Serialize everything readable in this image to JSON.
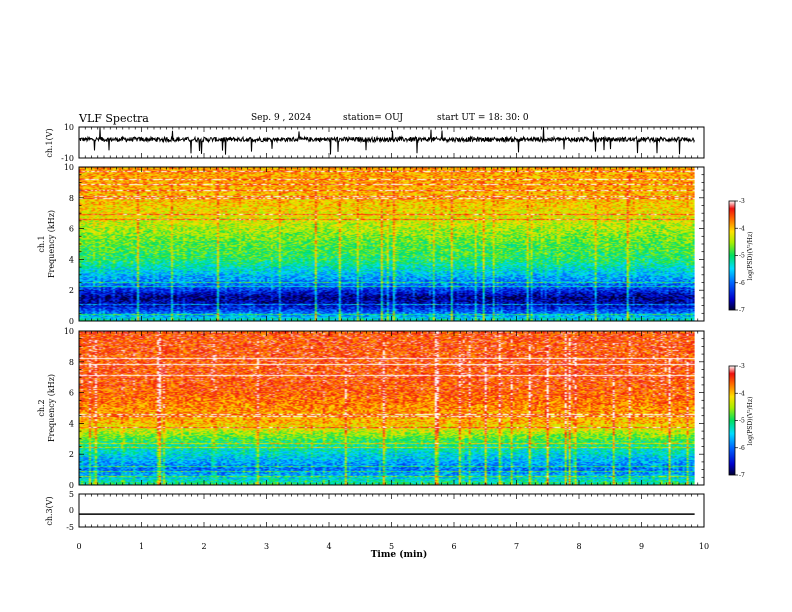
{
  "header": {
    "title": "VLF Spectra",
    "date": "Sep. 9 , 2024",
    "station": "station= OUJ",
    "start_time": "start UT = 18: 30: 0"
  },
  "chart_data": [
    {
      "type": "line",
      "panel": "ch1-waveform",
      "ylabel": "ch.1(V)",
      "ylim": [
        -10,
        10
      ],
      "yticks": [
        "10",
        "-10"
      ],
      "xlim": [
        0,
        10
      ],
      "series": [
        {
          "level": 2,
          "noise_amplitude": 3,
          "spike_amplitude": 10,
          "duration_min": 9.85
        }
      ]
    },
    {
      "type": "heatmap",
      "panel": "ch1-spectrogram",
      "ylabel_line1": "ch.1",
      "ylabel_line2": "Frequency (kHz)",
      "ylim": [
        0,
        10
      ],
      "yticks": [
        "0",
        "2",
        "4",
        "6",
        "8",
        "10"
      ],
      "xlim": [
        0,
        10
      ],
      "duration_min": 9.85,
      "log_psd_profile_by_freq_khz": [
        [
          0,
          -5.3
        ],
        [
          0.5,
          -6.0
        ],
        [
          1.0,
          -6.6
        ],
        [
          1.5,
          -6.8
        ],
        [
          2.0,
          -6.3
        ],
        [
          2.5,
          -5.9
        ],
        [
          3.0,
          -5.6
        ],
        [
          3.5,
          -5.3
        ],
        [
          4.0,
          -5.0
        ],
        [
          5.0,
          -4.8
        ],
        [
          6.0,
          -4.5
        ],
        [
          7.0,
          -4.2
        ],
        [
          8.0,
          -4.0
        ],
        [
          9.0,
          -3.9
        ],
        [
          10.0,
          -3.9
        ]
      ],
      "colorbar": {
        "min": -7,
        "max": -3,
        "ticks": [
          "-3",
          "-4",
          "-5",
          "-6",
          "-7"
        ],
        "label": "log(PSD)(V²/Hz)"
      }
    },
    {
      "type": "heatmap",
      "panel": "ch2-spectrogram",
      "ylabel_line1": "ch.2",
      "ylabel_line2": "Frequency (kHz)",
      "ylim": [
        0,
        10
      ],
      "yticks": [
        "0",
        "2",
        "4",
        "6",
        "8",
        "10"
      ],
      "xlim": [
        0,
        10
      ],
      "duration_min": 9.85,
      "log_psd_profile_by_freq_khz": [
        [
          0,
          -5.0
        ],
        [
          0.5,
          -5.6
        ],
        [
          1.0,
          -6.0
        ],
        [
          1.5,
          -5.7
        ],
        [
          2.0,
          -5.4
        ],
        [
          2.5,
          -5.2
        ],
        [
          3.0,
          -4.8
        ],
        [
          3.5,
          -4.4
        ],
        [
          4.0,
          -4.0
        ],
        [
          5.0,
          -3.8
        ],
        [
          6.0,
          -3.6
        ],
        [
          7.0,
          -3.5
        ],
        [
          8.0,
          -3.5
        ],
        [
          9.0,
          -3.5
        ],
        [
          10.0,
          -3.5
        ]
      ],
      "colorbar": {
        "min": -7,
        "max": -3,
        "ticks": [
          "-3",
          "-4",
          "-5",
          "-6",
          "-7"
        ],
        "label": "log(PSD)(V²/Hz)"
      }
    },
    {
      "type": "line",
      "panel": "ch3-waveform",
      "ylabel": "ch.3(V)",
      "ylim": [
        -5,
        5
      ],
      "yticks": [
        "5",
        "0",
        "-5"
      ],
      "xlim": [
        0,
        10
      ],
      "series": [
        {
          "level": -1.1,
          "duration_min": 9.85
        }
      ]
    }
  ],
  "x_axis": {
    "label": "Time (min)",
    "ticks": [
      "0",
      "1",
      "2",
      "3",
      "4",
      "5",
      "6",
      "7",
      "8",
      "9",
      "10"
    ],
    "range": [
      0,
      10
    ]
  }
}
